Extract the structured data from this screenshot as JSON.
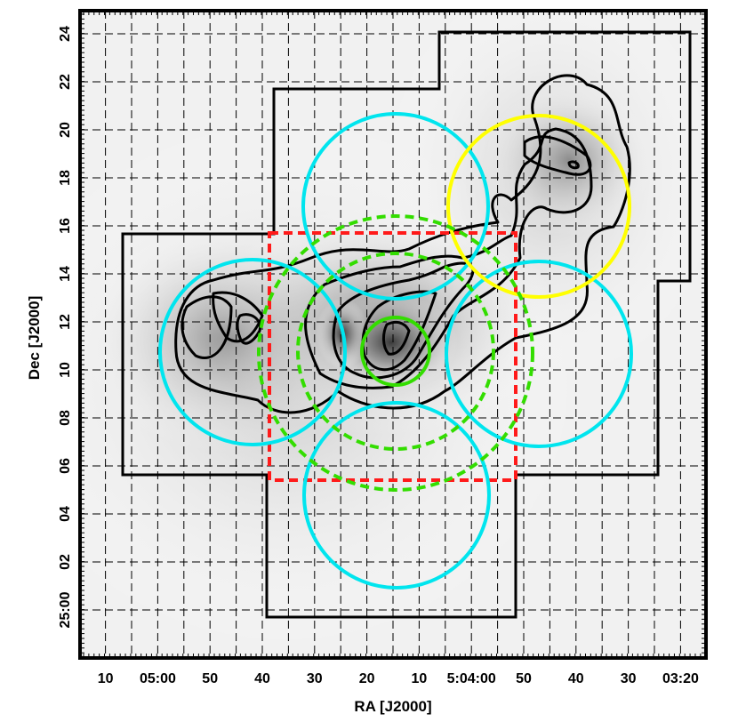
{
  "chart_data": {
    "type": "sky-map",
    "xlabel": "RA [J2000]",
    "ylabel": "Dec [J2000]",
    "xlim_seconds_west_offset": [
      15,
      -79
    ],
    "ylim_arcmin": [
      -1.6,
      25.4
    ],
    "grid": true,
    "x_ticks": [
      {
        "label": "10",
        "value": 10
      },
      {
        "label": "05:00",
        "value": 0
      },
      {
        "label": "50",
        "value": -10
      },
      {
        "label": "40",
        "value": -20
      },
      {
        "label": "30",
        "value": -30
      },
      {
        "label": "20",
        "value": -40
      },
      {
        "label": "10",
        "value": -50
      },
      {
        "label": "5:04:00",
        "value": -60
      },
      {
        "label": "50",
        "value": -70
      },
      {
        "label": "40",
        "value": -80
      },
      {
        "label": "30",
        "value": -90
      },
      {
        "label": "03:20",
        "value": -100
      }
    ],
    "y_ticks": [
      {
        "label": "25:00",
        "value": 0
      },
      {
        "label": "02",
        "value": 2
      },
      {
        "label": "04",
        "value": 4
      },
      {
        "label": "06",
        "value": 6
      },
      {
        "label": "08",
        "value": 8
      },
      {
        "label": "10",
        "value": 10
      },
      {
        "label": "12",
        "value": 12
      },
      {
        "label": "14",
        "value": 14
      },
      {
        "label": "16",
        "value": 16
      },
      {
        "label": "18",
        "value": 18
      },
      {
        "label": "20",
        "value": 20
      },
      {
        "label": "22",
        "value": 22
      },
      {
        "label": "24",
        "value": 24
      }
    ],
    "coverage_outline_points": [
      [
        -90,
        24.1
      ],
      [
        -60,
        24.1
      ],
      [
        -60,
        21.8
      ],
      [
        -30,
        21.8
      ],
      [
        -30,
        15.8
      ],
      [
        0,
        15.8
      ],
      [
        0,
        5.7
      ],
      [
        -30,
        5.7
      ],
      [
        -30,
        0.5
      ],
      [
        -70,
        0.5
      ],
      [
        -70,
        5.7
      ],
      [
        -90,
        5.7
      ]
    ],
    "coverage_outline_pixels_hint": "outline drawn in data units",
    "circles": [
      {
        "color": "#00e5ee",
        "style": "solid",
        "ra": -46.5,
        "dec": 16.8,
        "radius": 3.8
      },
      {
        "color": "#00e5ee",
        "style": "solid",
        "ra": -19.5,
        "dec": 11.0,
        "radius": 3.8
      },
      {
        "color": "#00e5ee",
        "style": "solid",
        "ra": -73.5,
        "dec": 10.8,
        "radius": 3.8
      },
      {
        "color": "#00e5ee",
        "style": "solid",
        "ra": -46.5,
        "dec": 4.8,
        "radius": 3.8
      },
      {
        "color": "#ffff00",
        "style": "solid",
        "ra": -73.5,
        "dec": 16.8,
        "radius": 3.8
      },
      {
        "color": "#33dd00",
        "style": "solid",
        "ra": -47.5,
        "dec": 10.8,
        "radius": 1.4
      },
      {
        "color": "#33dd00",
        "style": "dashed",
        "ra": -47.5,
        "dec": 10.8,
        "radius": 4.1
      },
      {
        "color": "#33dd00",
        "style": "dashed",
        "ra": -46.5,
        "dec": 11.0,
        "radius": 5.6
      }
    ],
    "red_box": {
      "color": "#ff1a1a",
      "ra_min": -70,
      "ra_max": -30,
      "dec_min": 5.4,
      "dec_max": 15.8
    },
    "contours": [
      [
        [
          -18,
          12.6
        ],
        [
          -22,
          13.4
        ],
        [
          -28,
          14.1
        ],
        [
          -35,
          14.5
        ],
        [
          -41,
          14.6
        ],
        [
          -46,
          14.9
        ],
        [
          -50,
          15.1
        ],
        [
          -53,
          15.3
        ],
        [
          -58,
          15.4
        ],
        [
          -62,
          16.0
        ],
        [
          -63,
          17.0
        ],
        [
          -62,
          18.5
        ],
        [
          -64,
          20.0
        ],
        [
          -70,
          20.4
        ],
        [
          -75,
          21.7
        ],
        [
          -80,
          21.4
        ],
        [
          -85,
          20.4
        ],
        [
          -85,
          19.3
        ],
        [
          -87,
          18.0
        ],
        [
          -84,
          16.8
        ],
        [
          -82,
          15.8
        ],
        [
          -83,
          14.8
        ],
        [
          -84,
          12.6
        ],
        [
          -82,
          11.9
        ],
        [
          -76,
          11.1
        ],
        [
          -68,
          10.4
        ],
        [
          -65,
          9.7
        ],
        [
          -60,
          8.7
        ],
        [
          -53,
          7.7
        ],
        [
          -45,
          7.1
        ],
        [
          -37,
          7.4
        ],
        [
          -30,
          8.0
        ],
        [
          -22,
          8.6
        ],
        [
          -17,
          9.5
        ],
        [
          -14,
          10.5
        ],
        [
          -14,
          11.9
        ],
        [
          -18,
          12.6
        ]
      ],
      [
        [
          -22,
          12.4
        ],
        [
          -28,
          13.1
        ],
        [
          -36,
          13.4
        ],
        [
          -43,
          13.2
        ],
        [
          -49,
          13.7
        ],
        [
          -55,
          14.5
        ],
        [
          -59,
          15.0
        ],
        [
          -60,
          16.0
        ],
        [
          -60,
          16.6
        ],
        [
          -52,
          16.6
        ],
        [
          -57,
          16.9
        ],
        [
          -62,
          18.2
        ],
        [
          -64,
          18.9
        ],
        [
          -69,
          19.0
        ],
        [
          -73,
          20.6
        ],
        [
          -78,
          20.4
        ],
        [
          -81,
          19.2
        ],
        [
          -80,
          18.1
        ],
        [
          -77,
          17.4
        ],
        [
          -66,
          16.0
        ],
        [
          -62,
          14.1
        ],
        [
          -60,
          12.7
        ],
        [
          -54,
          10.8
        ],
        [
          -50,
          8.8
        ],
        [
          -43,
          8.1
        ],
        [
          -36,
          8.5
        ],
        [
          -28,
          9.4
        ],
        [
          -22,
          10.1
        ],
        [
          -19,
          11.0
        ],
        [
          -22,
          12.4
        ]
      ],
      [
        [
          -25,
          11.9
        ],
        [
          -33,
          12.4
        ],
        [
          -41,
          12.2
        ],
        [
          -47,
          12.6
        ],
        [
          -53,
          13.3
        ],
        [
          -57,
          14.0
        ],
        [
          -56,
          12.6
        ],
        [
          -53,
          10.6
        ],
        [
          -49,
          9.5
        ],
        [
          -43,
          9.0
        ],
        [
          -36,
          9.7
        ],
        [
          -30,
          10.2
        ],
        [
          -25,
          11.0
        ],
        [
          -25,
          11.9
        ]
      ],
      [
        [
          -42,
          12.1
        ],
        [
          -46,
          12.4
        ],
        [
          -50,
          12.1
        ],
        [
          -50,
          10.6
        ],
        [
          -47,
          9.6
        ],
        [
          -44,
          9.9
        ],
        [
          -42,
          11.0
        ],
        [
          -42,
          12.1
        ]
      ],
      [
        [
          -46,
          11.4
        ],
        [
          -47,
          11.6
        ],
        [
          -48,
          10.8
        ],
        [
          -47,
          10.3
        ],
        [
          -46,
          11.4
        ]
      ],
      [
        [
          -74,
          18.7
        ],
        [
          -78,
          19.4
        ],
        [
          -81,
          19.2
        ],
        [
          -80,
          18.4
        ],
        [
          -77,
          18.6
        ],
        [
          -74,
          18.7
        ]
      ],
      [
        [
          -82,
          18.6
        ],
        [
          -83,
          18.8
        ],
        [
          -83,
          18.5
        ],
        [
          -82,
          18.6
        ]
      ],
      [
        [
          -22,
          12.0
        ],
        [
          -24,
          12.4
        ],
        [
          -26,
          11.6
        ],
        [
          -24,
          10.8
        ],
        [
          -22,
          12.0
        ]
      ]
    ],
    "background": "grayscale intensity map"
  }
}
